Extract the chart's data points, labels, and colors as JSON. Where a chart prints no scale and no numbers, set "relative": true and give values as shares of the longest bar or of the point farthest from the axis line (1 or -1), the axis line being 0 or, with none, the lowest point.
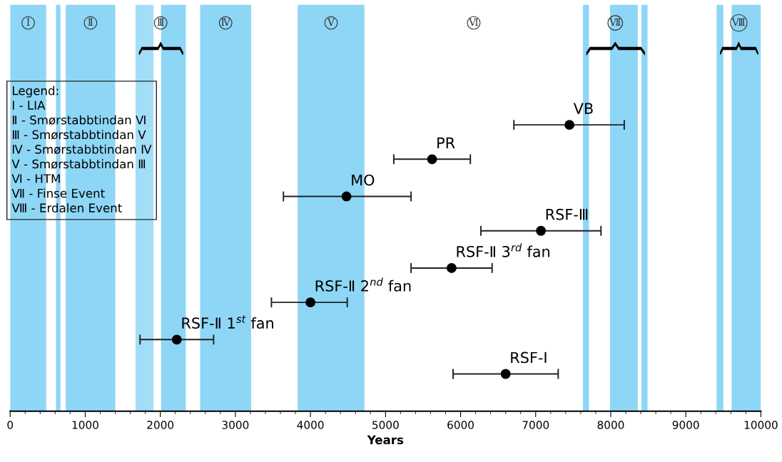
{
  "chart_data": {
    "type": "scatter",
    "relative": true,
    "xlabel": "Years",
    "xlim": [
      0,
      10000
    ],
    "xticks": [
      0,
      {
        "value": 200,
        "label": null
      },
      {
        "value": 400,
        "label": null
      },
      {
        "value": 600,
        "label": null
      },
      {
        "value": 800,
        "label": null
      },
      1000,
      {
        "value": 1200,
        "label": null
      },
      {
        "value": 1400,
        "label": null
      },
      {
        "value": 1600,
        "label": null
      },
      {
        "value": 1800,
        "label": null
      },
      2000,
      {
        "value": 2200,
        "label": null
      },
      {
        "value": 2400,
        "label": null
      },
      {
        "value": 2600,
        "label": null
      },
      {
        "value": 2800,
        "label": null
      },
      3000,
      {
        "value": 3200,
        "label": null
      },
      {
        "value": 3400,
        "label": null
      },
      {
        "value": 3600,
        "label": null
      },
      {
        "value": 3800,
        "label": null
      },
      4000,
      {
        "value": 4200,
        "label": null
      },
      {
        "value": 4400,
        "label": null
      },
      {
        "value": 4600,
        "label": null
      },
      {
        "value": 4800,
        "label": null
      },
      5000,
      {
        "value": 5200,
        "label": null
      },
      {
        "value": 5400,
        "label": null
      },
      {
        "value": 5600,
        "label": null
      },
      {
        "value": 5800,
        "label": null
      },
      6000,
      {
        "value": 6200,
        "label": null
      },
      {
        "value": 6400,
        "label": null
      },
      {
        "value": 6600,
        "label": null
      },
      {
        "value": 6800,
        "label": null
      },
      7000,
      {
        "value": 7200,
        "label": null
      },
      {
        "value": 7400,
        "label": null
      },
      {
        "value": 7600,
        "label": null
      },
      {
        "value": 7800,
        "label": null
      },
      8000,
      {
        "value": 8200,
        "label": null
      },
      {
        "value": 8400,
        "label": null
      },
      {
        "value": 8600,
        "label": null
      },
      {
        "value": 8800,
        "label": null
      },
      9000,
      {
        "value": 9200,
        "label": null
      },
      {
        "value": 9400,
        "label": null
      },
      {
        "value": 9600,
        "label": null
      },
      {
        "value": 9800,
        "label": null
      },
      10000
    ],
    "tick_labels": "x",
    "marker": "circle",
    "series": [
      {
        "color": "#000000",
        "x": [
          7450,
          5620,
          4480,
          7070,
          5880,
          4000,
          2220,
          6600
        ],
        "values": [
          1,
          0.88,
          0.75,
          0.63,
          0.5,
          0.38,
          0.25,
          0.13
        ],
        "xerrors": [
          [
            6710,
            8180
          ],
          [
            5110,
            6130
          ],
          [
            3640,
            5340
          ],
          [
            6270,
            7870
          ],
          [
            5340,
            6420
          ],
          [
            3480,
            4490
          ],
          [
            1730,
            2710
          ],
          [
            5900,
            7300
          ]
        ]
      }
    ],
    "bands": [
      {
        "axis": "x",
        "from": 610,
        "to": 670,
        "label": null,
        "color": "#8ed6f6"
      },
      {
        "axis": "x",
        "from": 0,
        "to": 480,
        "label": "Ⅰ",
        "color": "#8ed6f6"
      },
      {
        "axis": "x",
        "from": 740,
        "to": 1400,
        "label": "Ⅱ",
        "color": "#8ed6f6"
      },
      {
        "axis": "x",
        "from": 1670,
        "to": 1910,
        "label": "Ⅲ",
        "color": "#a3def8"
      },
      {
        "axis": "x",
        "from": 2010,
        "to": 2340,
        "label": null,
        "color": "#8ed6f6"
      },
      {
        "axis": "x",
        "from": 2530,
        "to": 3210,
        "label": "Ⅳ",
        "color": "#8ed6f6"
      },
      {
        "axis": "x",
        "from": 3830,
        "to": 4720,
        "label": "Ⅴ",
        "color": "#8ed6f6"
      },
      {
        "axis": "x",
        "from": 4720,
        "to": 7630,
        "label": "Ⅵ",
        "color": "#ffffff"
      },
      {
        "axis": "x",
        "from": 7630,
        "to": 7710,
        "label": "Ⅶ",
        "color": "#8ed6f6"
      },
      {
        "axis": "x",
        "from": 7990,
        "to": 8360,
        "label": null,
        "color": "#8ed6f6"
      },
      {
        "axis": "x",
        "from": 8410,
        "to": 8490,
        "label": null,
        "color": "#8ed6f6"
      },
      {
        "axis": "x",
        "from": 9410,
        "to": 9500,
        "label": "Ⅷ",
        "color": "#8ed6f6"
      },
      {
        "axis": "x",
        "from": 9610,
        "to": 10000,
        "label": null,
        "color": "#8ed6f6"
      }
    ],
    "annotations": [
      {
        "text": "VB",
        "x": 7450,
        "y": 1
      },
      {
        "text": "PR",
        "x": 5620,
        "y": 0.88
      },
      {
        "text": "MO",
        "x": 4480,
        "y": 0.75
      },
      {
        "text": "RSF-Ⅲ",
        "x": 7070,
        "y": 0.63
      },
      {
        "text": "RSF-Ⅱ 3$^{rd}$ fan",
        "x": 5880,
        "y": 0.5
      },
      {
        "text": "RSF-Ⅱ 2$^{nd}$ fan",
        "x": 4000,
        "y": 0.38
      },
      {
        "text": "RSF-Ⅱ 1$^{st}$ fan",
        "x": 2220,
        "y": 0.25
      },
      {
        "text": "RSF-I",
        "x": 6600,
        "y": 0.13
      },
      "Legend:\nⅠ - LIA\nⅡ - Smørstabbtindan Ⅵ\nⅢ - Smørstabbtindan Ⅴ\nⅣ - Smørstabbtindan Ⅳ\nⅤ - Smørstabbtindan Ⅲ\nⅥ - HTM\nⅦ - Finse Event\nⅧ - Erdalen Event"
    ]
  }
}
